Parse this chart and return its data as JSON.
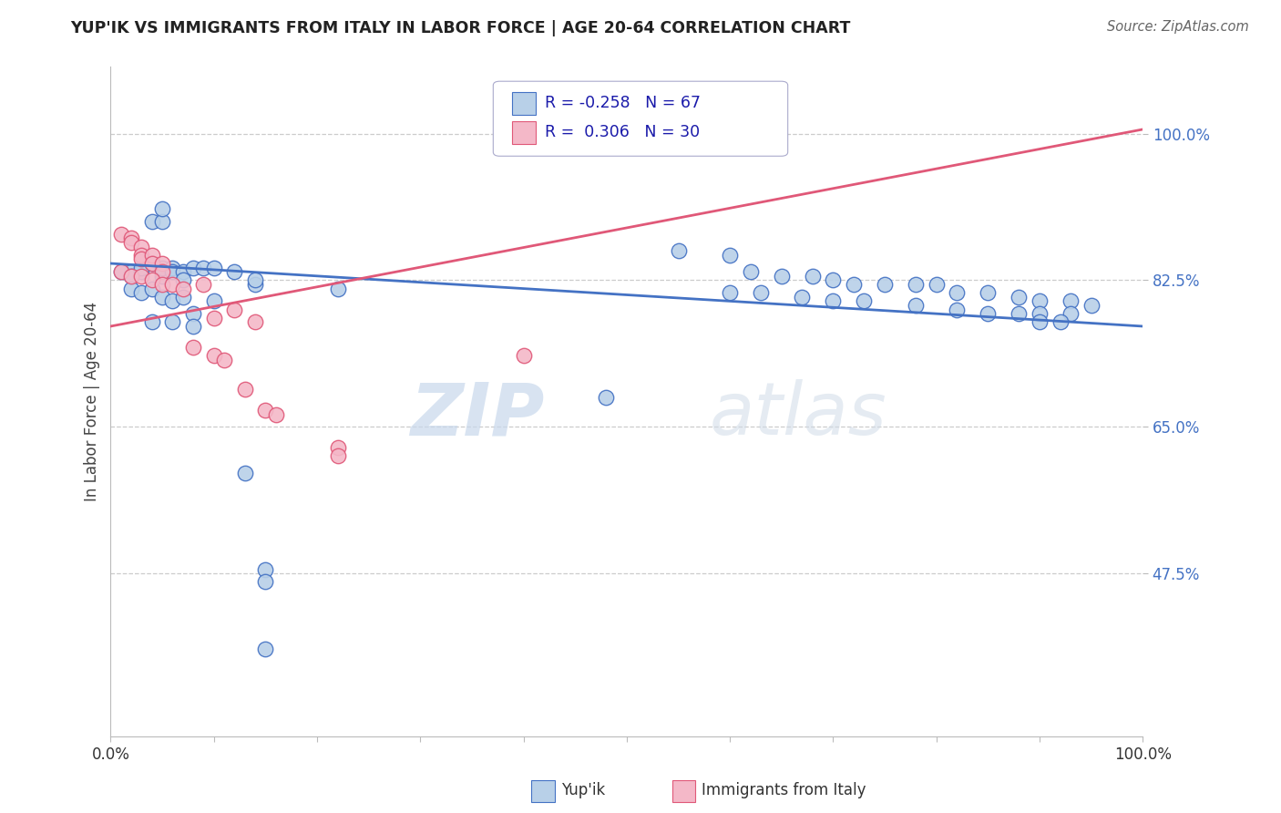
{
  "title": "YUP'IK VS IMMIGRANTS FROM ITALY IN LABOR FORCE | AGE 20-64 CORRELATION CHART",
  "source": "Source: ZipAtlas.com",
  "ylabel": "In Labor Force | Age 20-64",
  "yticks_labels": [
    "47.5%",
    "65.0%",
    "82.5%",
    "100.0%"
  ],
  "ytick_vals": [
    0.475,
    0.65,
    0.825,
    1.0
  ],
  "xlim": [
    0.0,
    1.0
  ],
  "ylim": [
    0.28,
    1.08
  ],
  "blue_fill": "#b8d0e8",
  "pink_fill": "#f4b8c8",
  "line_blue": "#4472c4",
  "line_pink": "#e05878",
  "watermark_zip": "ZIP",
  "watermark_atlas": "atlas",
  "blue_scatter": [
    [
      0.02,
      0.835
    ],
    [
      0.04,
      0.895
    ],
    [
      0.05,
      0.895
    ],
    [
      0.05,
      0.91
    ],
    [
      0.01,
      0.835
    ],
    [
      0.02,
      0.83
    ],
    [
      0.03,
      0.835
    ],
    [
      0.03,
      0.84
    ],
    [
      0.04,
      0.845
    ],
    [
      0.05,
      0.83
    ],
    [
      0.05,
      0.84
    ],
    [
      0.06,
      0.84
    ],
    [
      0.06,
      0.835
    ],
    [
      0.07,
      0.835
    ],
    [
      0.07,
      0.825
    ],
    [
      0.08,
      0.84
    ],
    [
      0.09,
      0.84
    ],
    [
      0.1,
      0.84
    ],
    [
      0.12,
      0.835
    ],
    [
      0.14,
      0.82
    ],
    [
      0.14,
      0.825
    ],
    [
      0.02,
      0.815
    ],
    [
      0.03,
      0.81
    ],
    [
      0.04,
      0.815
    ],
    [
      0.05,
      0.805
    ],
    [
      0.06,
      0.8
    ],
    [
      0.07,
      0.805
    ],
    [
      0.08,
      0.785
    ],
    [
      0.1,
      0.8
    ],
    [
      0.04,
      0.775
    ],
    [
      0.06,
      0.775
    ],
    [
      0.08,
      0.77
    ],
    [
      0.22,
      0.815
    ],
    [
      0.55,
      0.86
    ],
    [
      0.6,
      0.855
    ],
    [
      0.62,
      0.835
    ],
    [
      0.65,
      0.83
    ],
    [
      0.68,
      0.83
    ],
    [
      0.7,
      0.825
    ],
    [
      0.72,
      0.82
    ],
    [
      0.75,
      0.82
    ],
    [
      0.78,
      0.82
    ],
    [
      0.8,
      0.82
    ],
    [
      0.82,
      0.81
    ],
    [
      0.85,
      0.81
    ],
    [
      0.88,
      0.805
    ],
    [
      0.9,
      0.8
    ],
    [
      0.93,
      0.8
    ],
    [
      0.95,
      0.795
    ],
    [
      0.6,
      0.81
    ],
    [
      0.63,
      0.81
    ],
    [
      0.67,
      0.805
    ],
    [
      0.7,
      0.8
    ],
    [
      0.73,
      0.8
    ],
    [
      0.78,
      0.795
    ],
    [
      0.82,
      0.79
    ],
    [
      0.85,
      0.785
    ],
    [
      0.88,
      0.785
    ],
    [
      0.9,
      0.785
    ],
    [
      0.93,
      0.785
    ],
    [
      0.9,
      0.775
    ],
    [
      0.92,
      0.775
    ],
    [
      0.13,
      0.595
    ],
    [
      0.48,
      0.685
    ],
    [
      0.15,
      0.48
    ],
    [
      0.15,
      0.465
    ],
    [
      0.15,
      0.385
    ]
  ],
  "pink_scatter": [
    [
      0.01,
      0.88
    ],
    [
      0.02,
      0.875
    ],
    [
      0.02,
      0.87
    ],
    [
      0.03,
      0.865
    ],
    [
      0.03,
      0.855
    ],
    [
      0.03,
      0.85
    ],
    [
      0.04,
      0.855
    ],
    [
      0.04,
      0.845
    ],
    [
      0.05,
      0.845
    ],
    [
      0.05,
      0.835
    ],
    [
      0.01,
      0.835
    ],
    [
      0.02,
      0.83
    ],
    [
      0.03,
      0.83
    ],
    [
      0.04,
      0.825
    ],
    [
      0.05,
      0.82
    ],
    [
      0.06,
      0.82
    ],
    [
      0.07,
      0.815
    ],
    [
      0.09,
      0.82
    ],
    [
      0.1,
      0.78
    ],
    [
      0.12,
      0.79
    ],
    [
      0.14,
      0.775
    ],
    [
      0.08,
      0.745
    ],
    [
      0.1,
      0.735
    ],
    [
      0.11,
      0.73
    ],
    [
      0.13,
      0.695
    ],
    [
      0.15,
      0.67
    ],
    [
      0.16,
      0.665
    ],
    [
      0.22,
      0.625
    ],
    [
      0.22,
      0.615
    ],
    [
      0.4,
      0.735
    ]
  ],
  "blue_line_endpoints": [
    [
      0.0,
      0.845
    ],
    [
      1.0,
      0.77
    ]
  ],
  "pink_line_endpoints": [
    [
      0.0,
      0.77
    ],
    [
      1.0,
      1.005
    ]
  ]
}
